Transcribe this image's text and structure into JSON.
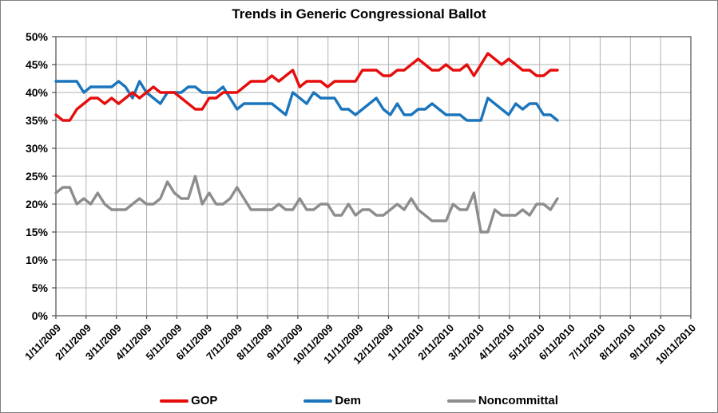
{
  "title": "Trends in Generic Congressional Ballot",
  "colors": {
    "gop": "#e60d0d",
    "dem": "#1b75bc",
    "noncommittal": "#8d8d8d",
    "gridline": "#b2b2b2",
    "axis": "#4d4d4d",
    "text": "#000000",
    "frame_border": "#7f7f7f"
  },
  "chart_data": {
    "type": "line",
    "title": "Trends in Generic Congressional Ballot",
    "grid": true,
    "legend_position": "bottom",
    "y_axis": {
      "min": 0,
      "max": 50,
      "step": 5,
      "tick_labels": [
        "50%",
        "45%",
        "40%",
        "35%",
        "30%",
        "25%",
        "20%",
        "15%",
        "10%",
        "5%",
        "0%"
      ]
    },
    "x_axis": {
      "tick_labels": [
        "1/11/2009",
        "2/11/2009",
        "3/11/2009",
        "4/11/2009",
        "5/11/2009",
        "6/11/2009",
        "7/11/2009",
        "8/11/2009",
        "9/11/2009",
        "10/11/2009",
        "11/11/2009",
        "12/11/2009",
        "1/11/2010",
        "2/11/2010",
        "3/11/2010",
        "4/11/2010",
        "5/11/2010",
        "6/11/2010",
        "7/11/2010",
        "8/11/2010",
        "9/11/2010",
        "10/11/2010"
      ],
      "data_start": "1/11/2009",
      "data_interval_days": 7
    },
    "series": [
      {
        "name": "GOP",
        "color": "#e60d0d",
        "values": [
          36,
          35,
          35,
          37,
          38,
          39,
          39,
          38,
          39,
          38,
          39,
          40,
          39,
          40,
          41,
          40,
          40,
          40,
          39,
          38,
          37,
          37,
          39,
          39,
          40,
          40,
          40,
          41,
          42,
          42,
          42,
          43,
          42,
          43,
          44,
          41,
          42,
          42,
          42,
          41,
          42,
          42,
          42,
          42,
          44,
          44,
          44,
          43,
          43,
          44,
          44,
          45,
          46,
          45,
          44,
          44,
          45,
          44,
          44,
          45,
          43,
          45,
          47,
          46,
          45,
          46,
          45,
          44,
          44,
          43,
          43,
          44,
          44
        ]
      },
      {
        "name": "Dem",
        "color": "#1b75bc",
        "values": [
          42,
          42,
          42,
          42,
          40,
          41,
          41,
          41,
          41,
          42,
          41,
          39,
          42,
          40,
          39,
          38,
          40,
          40,
          40,
          41,
          41,
          40,
          40,
          40,
          41,
          39,
          37,
          38,
          38,
          38,
          38,
          38,
          37,
          36,
          40,
          39,
          38,
          40,
          39,
          39,
          39,
          37,
          37,
          36,
          37,
          38,
          39,
          37,
          36,
          38,
          36,
          36,
          37,
          37,
          38,
          37,
          36,
          36,
          36,
          35,
          35,
          35,
          39,
          38,
          37,
          36,
          38,
          37,
          38,
          38,
          36,
          36,
          35
        ]
      },
      {
        "name": "Noncommittal",
        "color": "#8d8d8d",
        "values": [
          22,
          23,
          23,
          20,
          21,
          20,
          22,
          20,
          19,
          19,
          19,
          20,
          21,
          20,
          20,
          21,
          24,
          22,
          21,
          21,
          25,
          20,
          22,
          20,
          20,
          21,
          23,
          21,
          19,
          19,
          19,
          19,
          20,
          19,
          19,
          21,
          19,
          19,
          20,
          20,
          18,
          18,
          20,
          18,
          19,
          19,
          18,
          18,
          19,
          20,
          19,
          21,
          19,
          18,
          17,
          17,
          17,
          20,
          19,
          19,
          22,
          15,
          15,
          19,
          18,
          18,
          18,
          19,
          18,
          20,
          20,
          19,
          21
        ]
      }
    ]
  }
}
